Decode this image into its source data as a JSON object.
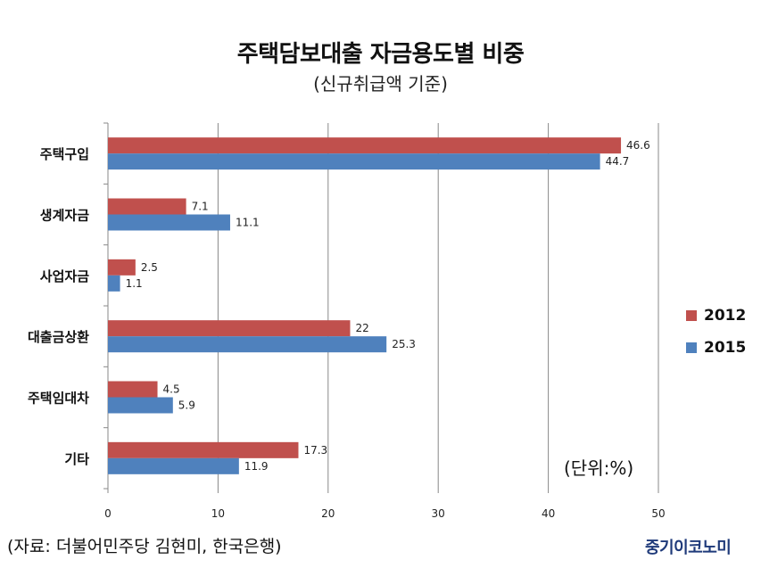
{
  "title": "주택담보대출 자금용도별 비중",
  "subtitle": "(신규취급액 기준)",
  "unit_label": "(단위:%)",
  "source": "(자료: 더불어민주당 김현미, 한국은행)",
  "logo_text": "중기이코노미",
  "colors": {
    "s2012": "#c0504d",
    "s2015": "#4f81bd",
    "grid": "#888888"
  },
  "chart_data": {
    "type": "bar",
    "orientation": "horizontal",
    "categories": [
      "주택구입",
      "생계자금",
      "사업자금",
      "대출금상환",
      "주택임대차",
      "기타"
    ],
    "series": [
      {
        "name": "2012",
        "values": [
          46.6,
          7.1,
          2.5,
          22,
          4.5,
          17.3
        ],
        "labels": [
          "46.6",
          "7.1",
          "2.5",
          "22",
          "4.5",
          "17.3"
        ]
      },
      {
        "name": "2015",
        "values": [
          44.7,
          11.1,
          1.1,
          25.3,
          5.9,
          11.9
        ],
        "labels": [
          "44.7",
          "11.1",
          "1.1",
          "25.3",
          "5.9",
          "11.9"
        ]
      }
    ],
    "xlim": [
      0,
      50
    ],
    "xticks": [
      "0",
      "10",
      "20",
      "30",
      "40",
      "50"
    ],
    "grid": true,
    "legend_position": "right"
  }
}
